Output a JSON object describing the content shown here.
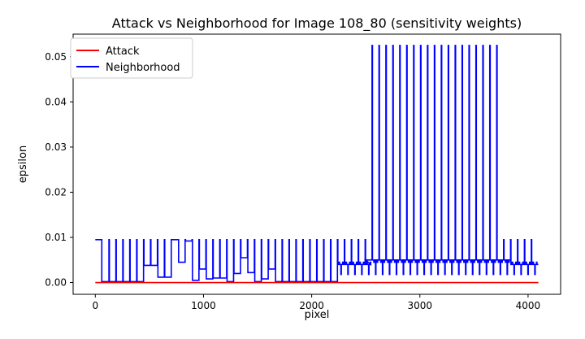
{
  "chart_data": {
    "type": "line",
    "title": "Attack vs Neighborhood for Image 108_80 (sensitivity weights)",
    "xlabel": "pixel",
    "ylabel": "epsilon",
    "xlim": [
      -205,
      4301
    ],
    "ylim": [
      -0.0026,
      0.055
    ],
    "xticks": [
      0,
      1000,
      2000,
      3000,
      4000
    ],
    "xtick_labels": [
      "0",
      "1000",
      "2000",
      "3000",
      "4000"
    ],
    "yticks": [
      0,
      0.01,
      0.02,
      0.03,
      0.04,
      0.05
    ],
    "ytick_labels": [
      "0.00",
      "0.01",
      "0.02",
      "0.03",
      "0.04",
      "0.05"
    ],
    "grid": false,
    "legend_position": "upper-left",
    "series": [
      {
        "name": "Attack",
        "color": "#ff0000",
        "x": [
          0,
          4095
        ],
        "y": [
          0,
          0
        ]
      },
      {
        "name": "Neighborhood",
        "color": "#0000ff",
        "baseline": 0.0002,
        "initial_level": 0.0095,
        "initial_segment_end": 60,
        "spike_period": 64,
        "spike_start": 128,
        "spike_end": 4095,
        "tall_spike_level": 0.0525,
        "tall_spike_range": [
          2500,
          3730
        ],
        "regular_spike_level": 0.0095,
        "step_levels": [
          {
            "x": [
              450,
              520
            ],
            "y": 0.0038
          },
          {
            "x": [
              520,
              580
            ],
            "y": 0.0072
          },
          {
            "x": [
              580,
              650
            ],
            "y": 0.0012
          },
          {
            "x": [
              650,
              720
            ],
            "y": 0.0095
          },
          {
            "x": [
              720,
              780
            ],
            "y": 0.0045
          },
          {
            "x": [
              780,
              860
            ],
            "y": 0.0092
          },
          {
            "x": [
              860,
              920
            ],
            "y": 0.0005
          },
          {
            "x": [
              920,
              1000
            ],
            "y": 0.003
          },
          {
            "x": [
              1000,
              1080
            ],
            "y": 0.0008
          },
          {
            "x": [
              1080,
              1160
            ],
            "y": 0.001
          },
          {
            "x": [
              1240,
              1300
            ],
            "y": 0.002
          },
          {
            "x": [
              1300,
              1370
            ],
            "y": 0.0055
          },
          {
            "x": [
              1400,
              1460
            ],
            "y": 0.0022
          },
          {
            "x": [
              1500,
              1560
            ],
            "y": 0.0008
          },
          {
            "x": [
              1560,
              1620
            ],
            "y": 0.003
          },
          {
            "x": [
              2200,
              2500
            ],
            "y": 0.004
          },
          {
            "x": [
              2500,
              3800
            ],
            "y": 0.005
          },
          {
            "x": [
              3800,
              4095
            ],
            "y": 0.004
          }
        ]
      }
    ]
  }
}
